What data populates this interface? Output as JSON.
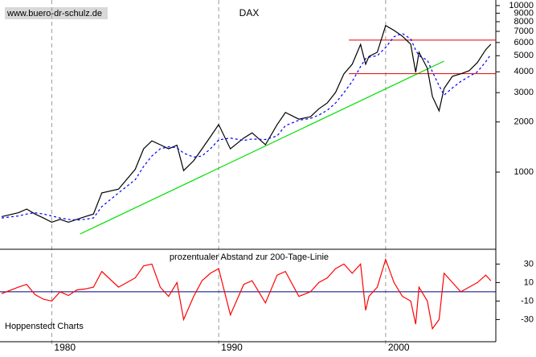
{
  "chart_data": [
    {
      "type": "line",
      "title": "DAX",
      "source": "www.buero-dr-schulz.de",
      "log_scale": true,
      "xlim": [
        1976.9,
        2006.6
      ],
      "xticks": [
        1980,
        1990,
        2000
      ],
      "ylim": [
        344,
        10800
      ],
      "yticks": [
        {
          "value": 1000,
          "label": "1000"
        },
        {
          "value": 2000,
          "label": "2000"
        },
        {
          "value": 3000,
          "label": "3000"
        },
        {
          "value": 4000,
          "label": "4000"
        },
        {
          "value": 5000,
          "label": "5000"
        },
        {
          "value": 6000,
          "label": "6000"
        },
        {
          "value": 7000,
          "label": "7000"
        },
        {
          "value": 8000,
          "label": "8000"
        },
        {
          "value": 9000,
          "label": "9000"
        },
        {
          "value": 10000,
          "label": "10000"
        }
      ],
      "x": [
        1977.0,
        1978.0,
        1978.5,
        1979.0,
        1979.5,
        1980.0,
        1980.5,
        1981.0,
        1981.5,
        1982.0,
        1982.5,
        1983.0,
        1984.0,
        1985.0,
        1985.5,
        1986.0,
        1986.5,
        1987.0,
        1987.5,
        1987.9,
        1988.5,
        1989.0,
        1989.5,
        1990.0,
        1990.7,
        1991.5,
        1992.0,
        1992.8,
        1993.5,
        1994.0,
        1994.8,
        1995.5,
        1996.0,
        1996.5,
        1997.0,
        1997.5,
        1998.0,
        1998.5,
        1998.8,
        1999.0,
        1999.5,
        2000.0,
        2000.5,
        2001.0,
        2001.5,
        2001.8,
        2002.0,
        2002.5,
        2002.8,
        2003.2,
        2003.5,
        2004.0,
        2004.5,
        2005.0,
        2005.5,
        2006.0,
        2006.3
      ],
      "series": [
        {
          "color": "#000000",
          "dashed": false,
          "values": [
            540,
            570,
            600,
            560,
            530,
            500,
            520,
            500,
            520,
            540,
            560,
            750,
            790,
            1040,
            1380,
            1540,
            1460,
            1380,
            1450,
            1020,
            1170,
            1380,
            1630,
            1930,
            1380,
            1600,
            1720,
            1460,
            1930,
            2280,
            2080,
            2150,
            2400,
            2600,
            3010,
            3890,
            4440,
            5840,
            4440,
            4950,
            5240,
            7580,
            7100,
            6550,
            5860,
            3970,
            5240,
            4200,
            2840,
            2330,
            3180,
            3760,
            3890,
            4060,
            4550,
            5440,
            5860
          ]
        },
        {
          "color": "#0000ff",
          "dashed": true,
          "values": [
            530,
            545,
            560,
            570,
            560,
            545,
            530,
            520,
            515,
            520,
            530,
            620,
            750,
            900,
            1080,
            1250,
            1380,
            1420,
            1400,
            1300,
            1230,
            1250,
            1380,
            1560,
            1600,
            1550,
            1580,
            1570,
            1650,
            1900,
            2050,
            2100,
            2200,
            2350,
            2600,
            3000,
            3500,
            4300,
            4800,
            4900,
            5000,
            5600,
            6500,
            6800,
            6300,
            5400,
            5000,
            4700,
            4000,
            3300,
            2900,
            3200,
            3500,
            3750,
            4000,
            4600,
            5100
          ]
        }
      ],
      "trend_line": {
        "color": "#00dd00",
        "x": [
          1981.7,
          2003.5
        ],
        "values": [
          425,
          4640
        ]
      },
      "levels": {
        "color": "#dd0000",
        "x": [
          1997.8,
          2006.6
        ],
        "values": [
          6200,
          3900
        ]
      }
    },
    {
      "type": "line",
      "title": "prozentualer Abstand zur 200-Tage-Linie",
      "source": "Hoppenstedt Charts",
      "xlim": [
        1976.9,
        2006.6
      ],
      "ylim": [
        -54,
        46
      ],
      "yticks": [
        -30,
        -10,
        10,
        30
      ],
      "reference": {
        "value": 0,
        "color": "#000080"
      },
      "x": [
        1977.0,
        1978.0,
        1978.5,
        1979.0,
        1979.5,
        1980.0,
        1980.5,
        1981.0,
        1981.5,
        1982.0,
        1982.5,
        1983.0,
        1984.0,
        1985.0,
        1985.5,
        1986.0,
        1986.5,
        1987.0,
        1987.5,
        1987.9,
        1988.5,
        1989.0,
        1989.5,
        1990.0,
        1990.7,
        1991.5,
        1992.0,
        1992.8,
        1993.5,
        1994.0,
        1994.8,
        1995.5,
        1996.0,
        1996.5,
        1997.0,
        1997.5,
        1998.0,
        1998.5,
        1998.8,
        1999.0,
        1999.5,
        2000.0,
        2000.5,
        2001.0,
        2001.5,
        2001.8,
        2002.0,
        2002.5,
        2002.8,
        2003.2,
        2003.5,
        2004.0,
        2004.5,
        2005.0,
        2005.5,
        2006.0,
        2006.3
      ],
      "series": [
        {
          "color": "#ff0000",
          "values": [
            -2,
            5,
            8,
            -3,
            -8,
            -10,
            0,
            -4,
            2,
            3,
            5,
            22,
            5,
            15,
            28,
            30,
            5,
            -5,
            10,
            -30,
            -5,
            12,
            20,
            25,
            -25,
            8,
            12,
            -12,
            18,
            22,
            -5,
            0,
            10,
            15,
            25,
            30,
            20,
            30,
            -20,
            -5,
            5,
            35,
            10,
            -5,
            -10,
            -35,
            5,
            -10,
            -40,
            -30,
            20,
            10,
            0,
            5,
            10,
            18,
            12
          ]
        }
      ]
    }
  ]
}
